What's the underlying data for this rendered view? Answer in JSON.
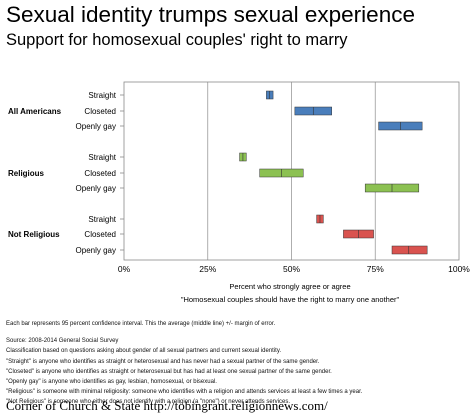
{
  "title": "Sexual identity trumps sexual experience",
  "subtitle": "Support for homosexual couples' right to marry",
  "chart_data": {
    "type": "bar",
    "subtype": "interval",
    "xlabel": "Percent who strongly agree or agree",
    "xlabel2": "\"Homosexual couples should have the right to marry one another\"",
    "xlim": [
      0,
      100
    ],
    "x_ticks": [
      "0%",
      "25%",
      "50%",
      "75%",
      "100%"
    ],
    "x_tick_values": [
      0,
      25,
      50,
      75,
      100
    ],
    "grid": "vertical",
    "groups": [
      {
        "label": "All Americans",
        "color": "#4a7ebb",
        "rows": [
          {
            "label": "Straight",
            "low": 42.5,
            "mean": 43.5,
            "high": 44.5
          },
          {
            "label": "Closeted",
            "low": 51,
            "mean": 56.5,
            "high": 62
          },
          {
            "label": "Openly gay",
            "low": 76,
            "mean": 82.5,
            "high": 89
          }
        ]
      },
      {
        "label": "Religious",
        "color": "#8cc152",
        "rows": [
          {
            "label": "Straight",
            "low": 34.5,
            "mean": 35.5,
            "high": 36.5
          },
          {
            "label": "Closeted",
            "low": 40.5,
            "mean": 47,
            "high": 53.5
          },
          {
            "label": "Openly gay",
            "low": 72,
            "mean": 80,
            "high": 88
          }
        ]
      },
      {
        "label": "Not Religious",
        "color": "#d9534f",
        "rows": [
          {
            "label": "Straight",
            "low": 57.5,
            "mean": 58.5,
            "high": 59.5
          },
          {
            "label": "Closeted",
            "low": 65.5,
            "mean": 70,
            "high": 74.5
          },
          {
            "label": "Openly gay",
            "low": 80,
            "mean": 85,
            "high": 90.5
          }
        ]
      }
    ]
  },
  "notes": {
    "interval": "Each bar represents 95 percent confidence interval. This the average (middle line) +/- margin of error.",
    "source": "Source: 2008-2014 General Social Survey",
    "lines": [
      "Classification based on questions asking about gender of all sexual partners and current sexual identity.",
      "\"Straight\" is anyone who identifies as straight or heterosexual and has never had a sexual partner of the same gender.",
      "\"Closeted\" is anyone who identifies as straight or heterosexual but has had at least one sexual partner of the same gender.",
      "\"Openly gay\" is anyone who identifies as gay, lesbian, homosexual, or bisexual.",
      "\"Religious\" is someone with minimal religiosity: someone who identifies with a religion and attends services at least a few times a year.",
      "\"Not Religious\" is someone who either does not identify with a religion (a \"none\") or never attends services."
    ]
  },
  "footer": "Corner of Church & State http://tobingrant.religionnews.com/"
}
